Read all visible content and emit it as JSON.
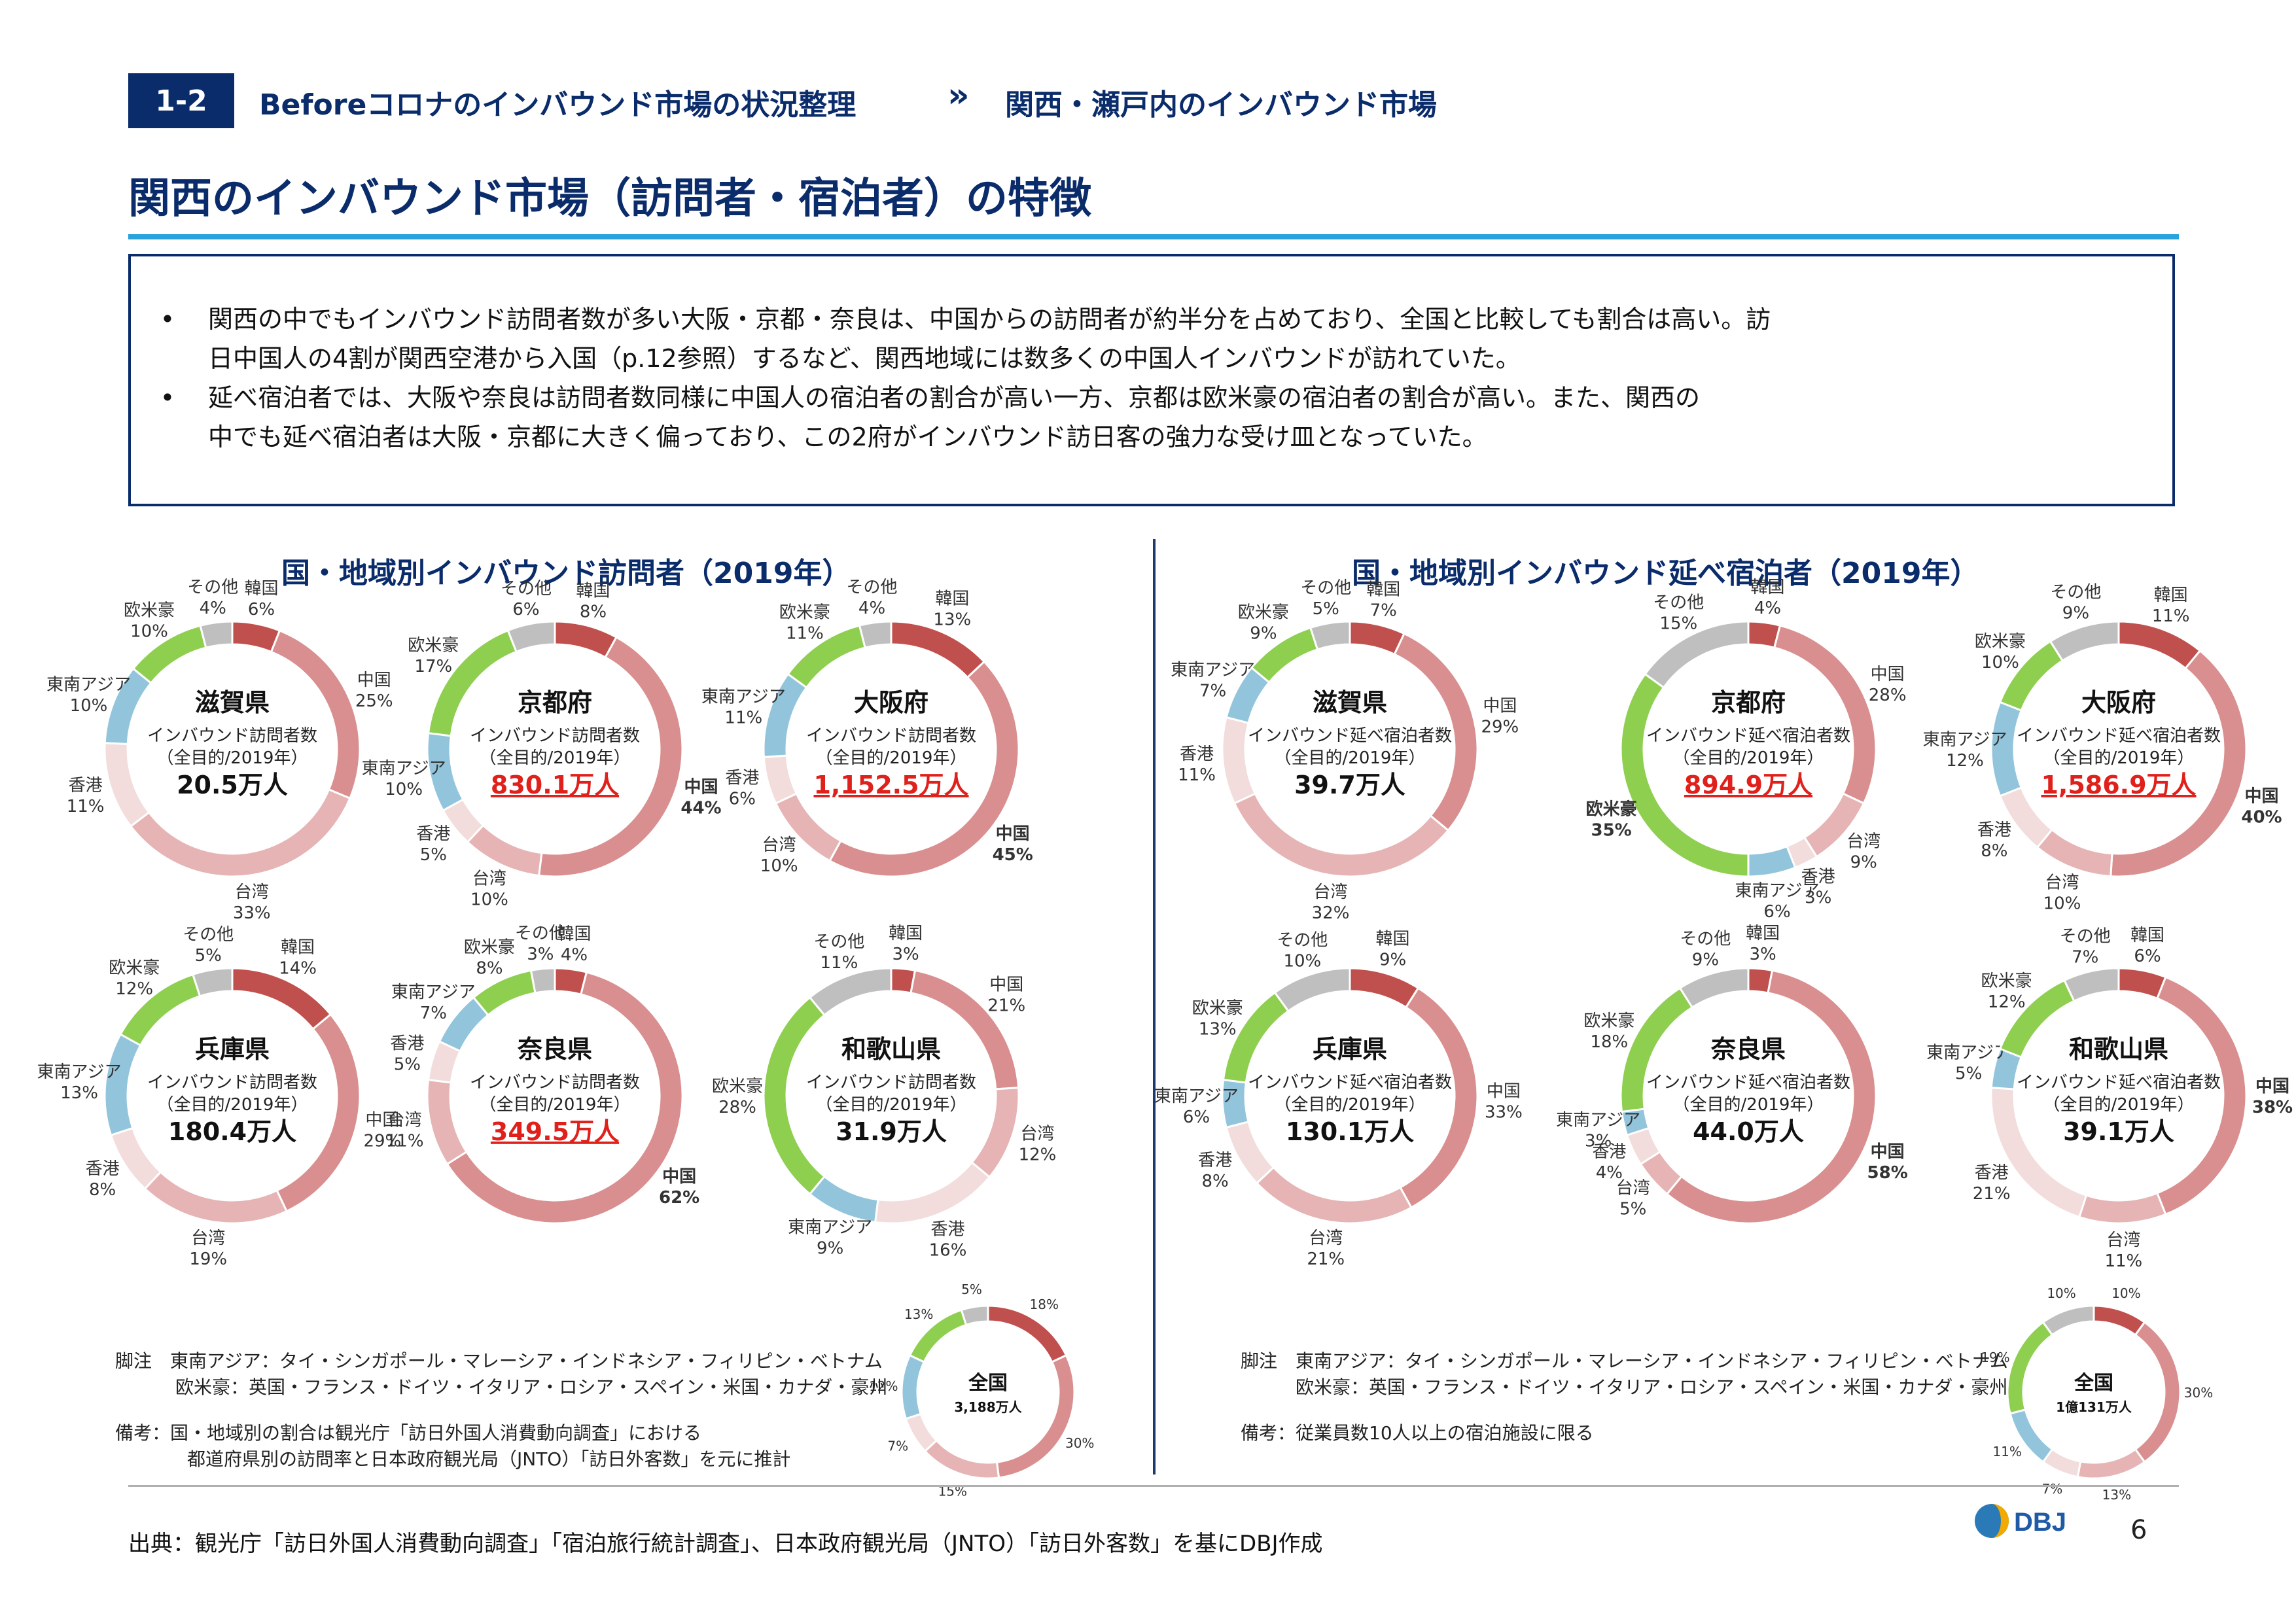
{
  "header": {
    "badge": "1-2",
    "section": "Beforeコロナのインバウンド市場の状況整理",
    "arrow": "»",
    "subsection": "関西・瀬戸内のインバウンド市場",
    "title": "関西のインバウンド市場（訪問者・宿泊者）の特徴"
  },
  "summary": {
    "bullet": "•",
    "lines": [
      "関西の中でもインバウンド訪問者数が多い大阪・京都・奈良は、中国からの訪問者が約半分を占めており、全国と比較しても割合は高い。訪",
      "日中国人の4割が関西空港から入国（p.12参照）するなど、関西地域には数多くの中国人インバウンドが訪れていた。",
      "延べ宿泊者では、大阪や奈良は訪問者数同様に中国人の宿泊者の割合が高い一方、京都は欧米豪の宿泊者の割合が高い。また、関西の",
      "中でも延べ宿泊者は大阪・京都に大きく偏っており、この2府がインバウンド訪日客の強力な受け皿となっていた。"
    ]
  },
  "colors": {
    "韓国": "#c0504d",
    "中国": "#d98f8f",
    "台湾": "#e6b4b4",
    "香港": "#f2dcdc",
    "東南アジア": "#92c5dc",
    "欧米豪": "#8fcf4f",
    "その他": "#bfbfbf"
  },
  "chart_data": [
    {
      "type": "pie",
      "panel": "left",
      "title": "国・地域別インバウンド訪問者（2019年）",
      "charts": [
        {
          "name": "滋賀県",
          "sub1": "インバウンド訪問者数",
          "sub2": "（全目的/2019年）",
          "total": "20.5万人",
          "slices": [
            [
              "韓国",
              6
            ],
            [
              "中国",
              25
            ],
            [
              "台湾",
              33
            ],
            [
              "香港",
              11
            ],
            [
              "東南アジア",
              10
            ],
            [
              "欧米豪",
              10
            ],
            [
              "その他",
              4
            ]
          ]
        },
        {
          "name": "京都府",
          "sub1": "インバウンド訪問者数",
          "sub2": "（全目的/2019年）",
          "total": "830.1万人",
          "slices": [
            [
              "韓国",
              8
            ],
            [
              "中国",
              44
            ],
            [
              "台湾",
              10
            ],
            [
              "香港",
              5
            ],
            [
              "東南アジア",
              10
            ],
            [
              "欧米豪",
              17
            ],
            [
              "その他",
              6
            ]
          ]
        },
        {
          "name": "大阪府",
          "sub1": "インバウンド訪問者数",
          "sub2": "（全目的/2019年）",
          "total": "1,152.5万人",
          "slices": [
            [
              "韓国",
              13
            ],
            [
              "中国",
              45
            ],
            [
              "台湾",
              10
            ],
            [
              "香港",
              6
            ],
            [
              "東南アジア",
              11
            ],
            [
              "欧米豪",
              11
            ],
            [
              "その他",
              4
            ]
          ]
        },
        {
          "name": "兵庫県",
          "sub1": "インバウンド訪問者数",
          "sub2": "（全目的/2019年）",
          "total": "180.4万人",
          "slices": [
            [
              "韓国",
              14
            ],
            [
              "中国",
              29
            ],
            [
              "台湾",
              19
            ],
            [
              "香港",
              8
            ],
            [
              "東南アジア",
              13
            ],
            [
              "欧米豪",
              12
            ],
            [
              "その他",
              5
            ]
          ]
        },
        {
          "name": "奈良県",
          "sub1": "インバウンド訪問者数",
          "sub2": "（全目的/2019年）",
          "total": "349.5万人",
          "slices": [
            [
              "韓国",
              4
            ],
            [
              "中国",
              62
            ],
            [
              "台湾",
              11
            ],
            [
              "香港",
              5
            ],
            [
              "東南アジア",
              7
            ],
            [
              "欧米豪",
              8
            ],
            [
              "その他",
              3
            ]
          ]
        },
        {
          "name": "和歌山県",
          "sub1": "インバウンド訪問者数",
          "sub2": "（全目的/2019年）",
          "total": "31.9万人",
          "slices": [
            [
              "韓国",
              3
            ],
            [
              "中国",
              21
            ],
            [
              "台湾",
              12
            ],
            [
              "香港",
              16
            ],
            [
              "東南アジア",
              9
            ],
            [
              "欧米豪",
              28
            ],
            [
              "その他",
              11
            ]
          ]
        },
        {
          "name": "全国",
          "sub1": "",
          "sub2": "",
          "total": "3,188万人",
          "slices": [
            [
              "韓国",
              18
            ],
            [
              "中国",
              30
            ],
            [
              "台湾",
              15
            ],
            [
              "香港",
              7
            ],
            [
              "東南アジア",
              12
            ],
            [
              "欧米豪",
              13
            ],
            [
              "その他",
              5
            ]
          ]
        }
      ]
    },
    {
      "type": "pie",
      "panel": "right",
      "title": "国・地域別インバウンド延べ宿泊者（2019年）",
      "charts": [
        {
          "name": "滋賀県",
          "sub1": "インバウンド延べ宿泊者数",
          "sub2": "（全目的/2019年）",
          "total": "39.7万人",
          "slices": [
            [
              "韓国",
              7
            ],
            [
              "中国",
              29
            ],
            [
              "台湾",
              32
            ],
            [
              "香港",
              11
            ],
            [
              "東南アジア",
              7
            ],
            [
              "欧米豪",
              9
            ],
            [
              "その他",
              5
            ]
          ]
        },
        {
          "name": "京都府",
          "sub1": "インバウンド延べ宿泊者数",
          "sub2": "（全目的/2019年）",
          "total": "894.9万人",
          "slices": [
            [
              "韓国",
              4
            ],
            [
              "中国",
              28
            ],
            [
              "台湾",
              9
            ],
            [
              "香港",
              3
            ],
            [
              "東南アジア",
              6
            ],
            [
              "欧米豪",
              35
            ],
            [
              "その他",
              15
            ]
          ]
        },
        {
          "name": "大阪府",
          "sub1": "インバウンド延べ宿泊者数",
          "sub2": "（全目的/2019年）",
          "total": "1,586.9万人",
          "slices": [
            [
              "韓国",
              11
            ],
            [
              "中国",
              40
            ],
            [
              "台湾",
              10
            ],
            [
              "香港",
              8
            ],
            [
              "東南アジア",
              12
            ],
            [
              "欧米豪",
              10
            ],
            [
              "その他",
              9
            ]
          ]
        },
        {
          "name": "兵庫県",
          "sub1": "インバウンド延べ宿泊者数",
          "sub2": "（全目的/2019年）",
          "total": "130.1万人",
          "slices": [
            [
              "韓国",
              9
            ],
            [
              "中国",
              33
            ],
            [
              "台湾",
              21
            ],
            [
              "香港",
              8
            ],
            [
              "東南アジア",
              6
            ],
            [
              "欧米豪",
              13
            ],
            [
              "その他",
              10
            ]
          ]
        },
        {
          "name": "奈良県",
          "sub1": "インバウンド延べ宿泊者数",
          "sub2": "（全目的/2019年）",
          "total": "44.0万人",
          "slices": [
            [
              "韓国",
              3
            ],
            [
              "中国",
              58
            ],
            [
              "台湾",
              5
            ],
            [
              "香港",
              4
            ],
            [
              "東南アジア",
              3
            ],
            [
              "欧米豪",
              18
            ],
            [
              "その他",
              9
            ]
          ]
        },
        {
          "name": "和歌山県",
          "sub1": "インバウンド延べ宿泊者数",
          "sub2": "（全目的/2019年）",
          "total": "39.1万人",
          "slices": [
            [
              "韓国",
              6
            ],
            [
              "中国",
              38
            ],
            [
              "台湾",
              11
            ],
            [
              "香港",
              21
            ],
            [
              "東南アジア",
              5
            ],
            [
              "欧米豪",
              12
            ],
            [
              "その他",
              7
            ]
          ]
        },
        {
          "name": "全国",
          "sub1": "",
          "sub2": "",
          "total": "1億131万人",
          "slices": [
            [
              "韓国",
              10
            ],
            [
              "中国",
              30
            ],
            [
              "台湾",
              13
            ],
            [
              "香港",
              7
            ],
            [
              "東南アジア",
              11
            ],
            [
              "欧米豪",
              19
            ],
            [
              "その他",
              10
            ]
          ]
        }
      ]
    }
  ],
  "notes": {
    "left_footnote1": "脚注　東南アジア：タイ・シンガポール・マレーシア・インドネシア・フィリピン・ベトナム",
    "left_footnote2": "欧米豪：英国・フランス・ドイツ・イタリア・ロシア・スペイン・米国・カナダ・豪州",
    "left_remark1": "備考：国・地域別の割合は観光庁「訪日外国人消費動向調査」における",
    "left_remark2": "都道府県別の訪問率と日本政府観光局（JNTO）「訪日外客数」を元に推計",
    "right_footnote1": "脚注　東南アジア：タイ・シンガポール・マレーシア・インドネシア・フィリピン・ベトナム",
    "right_footnote2": "欧米豪：英国・フランス・ドイツ・イタリア・ロシア・スペイン・米国・カナダ・豪州",
    "right_remark": "備考：従業員数10人以上の宿泊施設に限る"
  },
  "footer": {
    "source": "出典：観光庁「訪日外国人消費動向調査」「宿泊旅行統計調査」、日本政府観光局（JNTO）「訪日外客数」を基にDBJ作成",
    "page": "6",
    "logo": "DBJ"
  }
}
